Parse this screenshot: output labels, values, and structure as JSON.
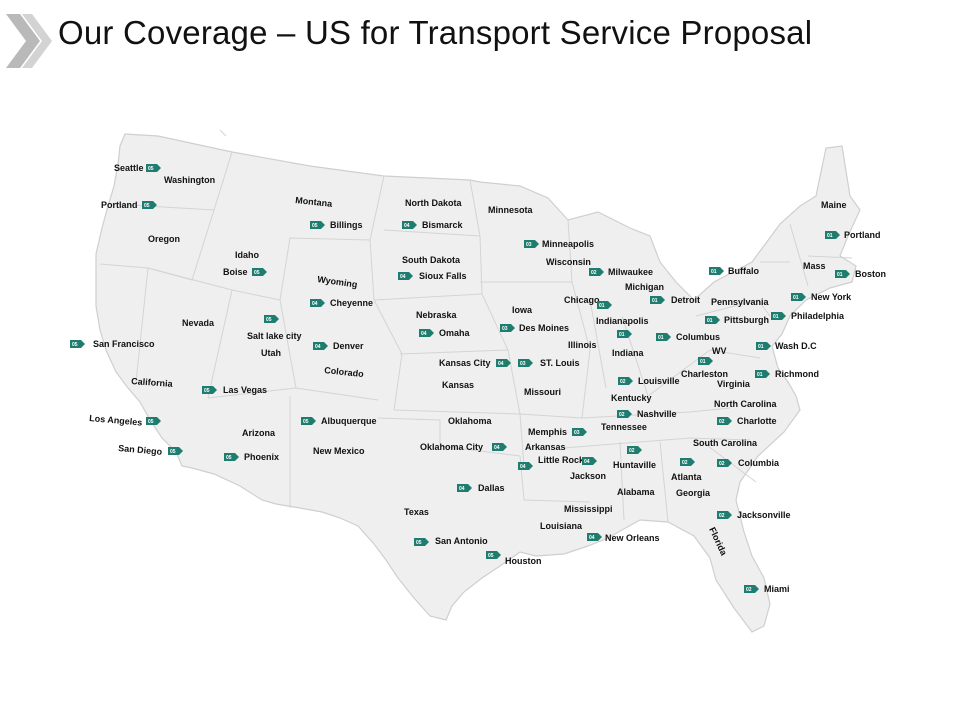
{
  "title": "Our Coverage – US for Transport Service Proposal",
  "colors": {
    "map_fill": "#efefef",
    "border": "#d4d4d4",
    "tag": "#1f7d6f",
    "chevron": "#b9b9b9"
  },
  "states": [
    {
      "name": "Washington"
    },
    {
      "name": "Oregon"
    },
    {
      "name": "California"
    },
    {
      "name": "Nevada"
    },
    {
      "name": "Idaho"
    },
    {
      "name": "Montana"
    },
    {
      "name": "Wyoming"
    },
    {
      "name": "Utah"
    },
    {
      "name": "Arizona"
    },
    {
      "name": "Colorado"
    },
    {
      "name": "New Mexico"
    },
    {
      "name": "North Dakota"
    },
    {
      "name": "South Dakota"
    },
    {
      "name": "Nebraska"
    },
    {
      "name": "Kansas"
    },
    {
      "name": "Oklahoma"
    },
    {
      "name": "Texas"
    },
    {
      "name": "Minnesota"
    },
    {
      "name": "Iowa"
    },
    {
      "name": "Missouri"
    },
    {
      "name": "Arkansas"
    },
    {
      "name": "Louisiana"
    },
    {
      "name": "Wisconsin"
    },
    {
      "name": "Illinois"
    },
    {
      "name": "Michigan"
    },
    {
      "name": "Indiana"
    },
    {
      "name": "Kentucky"
    },
    {
      "name": "Tennessee"
    },
    {
      "name": "Mississippi"
    },
    {
      "name": "Alabama"
    },
    {
      "name": "Georgia"
    },
    {
      "name": "Florida"
    },
    {
      "name": "South Carolina"
    },
    {
      "name": "North Carolina"
    },
    {
      "name": "Virginia"
    },
    {
      "name": "WV"
    },
    {
      "name": "Pennsylvania"
    },
    {
      "name": "Maine"
    },
    {
      "name": "Mass"
    }
  ],
  "cities": [
    {
      "name": "Seattle",
      "tag": "05"
    },
    {
      "name": "Portland",
      "tag": "05"
    },
    {
      "name": "San Francisco",
      "tag": "05"
    },
    {
      "name": "Los Angeles",
      "tag": "05"
    },
    {
      "name": "San Diego",
      "tag": "05"
    },
    {
      "name": "Las Vegas",
      "tag": "05"
    },
    {
      "name": "Boise",
      "tag": "05"
    },
    {
      "name": "Salt lake city",
      "tag": "05"
    },
    {
      "name": "Phoenix",
      "tag": "05"
    },
    {
      "name": "Billings",
      "tag": "05"
    },
    {
      "name": "Cheyenne",
      "tag": "04"
    },
    {
      "name": "Denver",
      "tag": "04"
    },
    {
      "name": "Albuquerque",
      "tag": "05"
    },
    {
      "name": "Bismarck",
      "tag": "04"
    },
    {
      "name": "Sioux Falls",
      "tag": "04"
    },
    {
      "name": "Omaha",
      "tag": "04"
    },
    {
      "name": "Kansas City",
      "tag": "04"
    },
    {
      "name": "Oklahoma City",
      "tag": "04"
    },
    {
      "name": "Dallas",
      "tag": "04"
    },
    {
      "name": "San Antonio",
      "tag": "05"
    },
    {
      "name": "Houston",
      "tag": "05"
    },
    {
      "name": "Minneapolis",
      "tag": "03"
    },
    {
      "name": "Des Moines",
      "tag": "03"
    },
    {
      "name": "ST. Louis",
      "tag": "03"
    },
    {
      "name": "Memphis",
      "tag": "03"
    },
    {
      "name": "Little Rock",
      "tag": "04"
    },
    {
      "name": "Jackson",
      "tag": "04"
    },
    {
      "name": "New Orleans",
      "tag": "04"
    },
    {
      "name": "Milwaukee",
      "tag": "02"
    },
    {
      "name": "Chicago",
      "tag": "01"
    },
    {
      "name": "Detroit",
      "tag": "01"
    },
    {
      "name": "Indianapolis",
      "tag": "01"
    },
    {
      "name": "Columbus",
      "tag": "01"
    },
    {
      "name": "Charleston",
      "tag": "01"
    },
    {
      "name": "Louisville",
      "tag": "02"
    },
    {
      "name": "Nashville",
      "tag": "02"
    },
    {
      "name": "Huntaville",
      "tag": "02"
    },
    {
      "name": "Atlanta",
      "tag": "02"
    },
    {
      "name": "Columbia",
      "tag": "02"
    },
    {
      "name": "Charlotte",
      "tag": "02"
    },
    {
      "name": "Jacksonville",
      "tag": "02"
    },
    {
      "name": "Miami",
      "tag": "02"
    },
    {
      "name": "Richmond",
      "tag": "01"
    },
    {
      "name": "Wash D.C",
      "tag": "01"
    },
    {
      "name": "Pittsburgh",
      "tag": "01"
    },
    {
      "name": "Buffalo",
      "tag": "01"
    },
    {
      "name": "Philadelphia",
      "tag": "01"
    },
    {
      "name": "New York",
      "tag": "01"
    },
    {
      "name": "Boston",
      "tag": "01"
    },
    {
      "name": "Portland",
      "tag": "01"
    }
  ]
}
